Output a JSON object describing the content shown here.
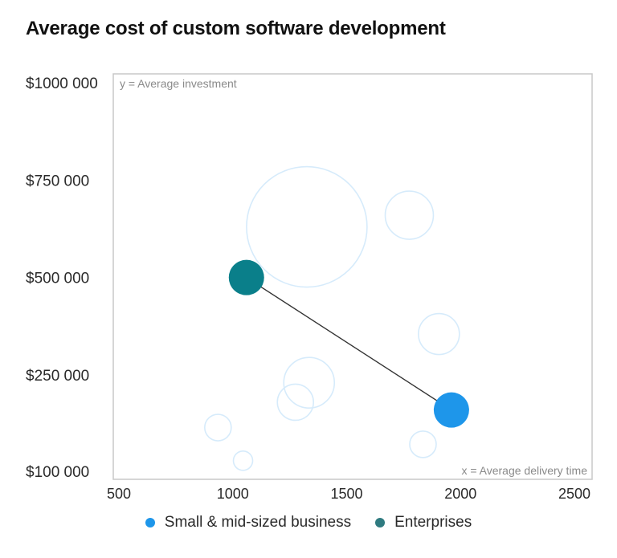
{
  "title": "Average cost of custom software development",
  "chart_data": {
    "type": "scatter",
    "title": "Average cost of custom software development",
    "xlabel": "x = Average delivery time",
    "ylabel": "y = Average investment",
    "x_ticks": [
      500,
      1000,
      1500,
      2000,
      2500
    ],
    "x_tick_labels": [
      "500",
      "1000",
      "1500",
      "2000",
      "2500"
    ],
    "y_ticks": [
      100000,
      250000,
      500000,
      750000,
      1000000
    ],
    "y_tick_labels": [
      "$100 000",
      "$250 000",
      "$500 000",
      "$750 000",
      "$1000 000"
    ],
    "xlim": [
      475,
      2500
    ],
    "ylim": [
      100000,
      1000000
    ],
    "grid": false,
    "legend_position": "bottom-center",
    "series": [
      {
        "name": "Small & mid-sized business",
        "color": "#1e96ea",
        "points": [
          {
            "x": 1960,
            "y": 160000
          }
        ]
      },
      {
        "name": "Enterprises",
        "color": "#0a7f8a",
        "points": [
          {
            "x": 1060,
            "y": 500000
          }
        ]
      }
    ],
    "connector": {
      "from": "Enterprises",
      "to": "Small & mid-sized business",
      "color": "#333333"
    },
    "background_bubbles": {
      "color": "#d6ebfb",
      "points": [
        {
          "x": 1325,
          "y": 630000,
          "size": 5
        },
        {
          "x": 1775,
          "y": 660000,
          "size": 2
        },
        {
          "x": 1905,
          "y": 355000,
          "size": 1.7
        },
        {
          "x": 1335,
          "y": 230000,
          "size": 2.1
        },
        {
          "x": 1275,
          "y": 180000,
          "size": 1.5
        },
        {
          "x": 935,
          "y": 115000,
          "size": 1.1
        },
        {
          "x": 1835,
          "y": 72000,
          "size": 1.1
        },
        {
          "x": 1045,
          "y": 30000,
          "size": 0.8
        }
      ]
    }
  },
  "legend": [
    {
      "label": "Small & mid-sized business",
      "color": "#1e96ea"
    },
    {
      "label": "Enterprises",
      "color": "#2f7b80"
    }
  ]
}
